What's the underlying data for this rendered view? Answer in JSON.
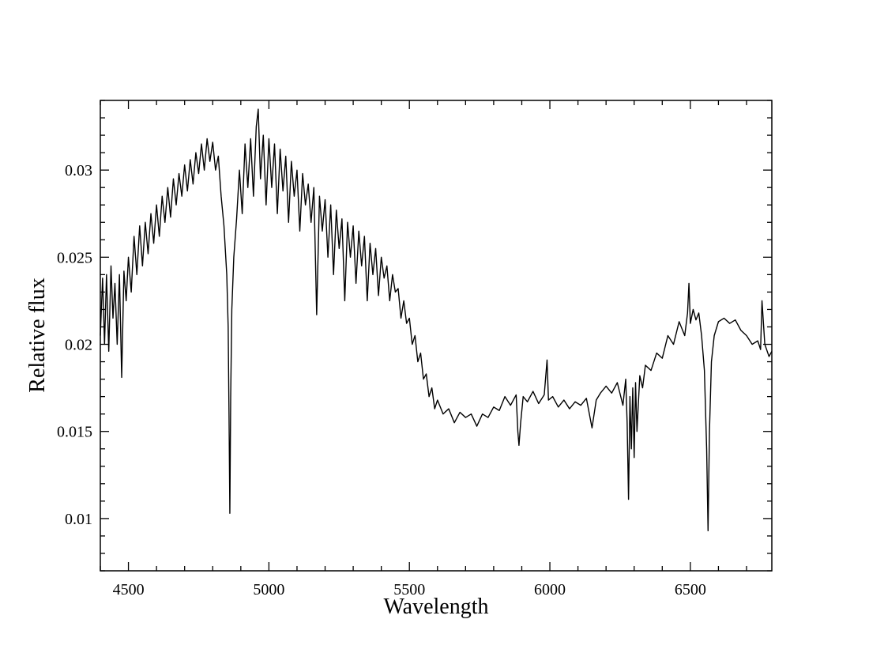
{
  "chart_data": {
    "type": "line",
    "xlabel": "Wavelength",
    "ylabel": "Relative flux",
    "xlim": [
      4400,
      6790
    ],
    "ylim": [
      0.007,
      0.034
    ],
    "xticks": [
      4500,
      5000,
      5500,
      6000,
      6500
    ],
    "yticks": [
      0.01,
      0.015,
      0.02,
      0.025,
      0.03
    ],
    "xminorticks": [
      4400,
      4600,
      4700,
      4800,
      4900,
      5100,
      5200,
      5300,
      5400,
      5600,
      5700,
      5800,
      5900,
      6100,
      6200,
      6300,
      6400,
      6600,
      6700
    ],
    "yminorticks": [
      0.007,
      0.008,
      0.009,
      0.011,
      0.012,
      0.013,
      0.014,
      0.016,
      0.017,
      0.018,
      0.019,
      0.021,
      0.022,
      0.023,
      0.024,
      0.026,
      0.027,
      0.028,
      0.029,
      0.031,
      0.032,
      0.033,
      0.034
    ],
    "color": "#000000",
    "x": [
      4400,
      4408,
      4415,
      4422,
      4430,
      4438,
      4445,
      4452,
      4460,
      4468,
      4476,
      4484,
      4492,
      4500,
      4510,
      4520,
      4530,
      4540,
      4550,
      4560,
      4570,
      4580,
      4590,
      4600,
      4610,
      4620,
      4630,
      4640,
      4650,
      4660,
      4670,
      4680,
      4690,
      4700,
      4710,
      4720,
      4730,
      4740,
      4750,
      4760,
      4770,
      4780,
      4790,
      4800,
      4810,
      4820,
      4830,
      4840,
      4850,
      4855,
      4858,
      4861,
      4864,
      4868,
      4875,
      4885,
      4895,
      4905,
      4915,
      4925,
      4935,
      4945,
      4955,
      4962,
      4970,
      4980,
      4990,
      5000,
      5010,
      5020,
      5030,
      5040,
      5050,
      5060,
      5070,
      5080,
      5090,
      5100,
      5110,
      5120,
      5130,
      5140,
      5150,
      5160,
      5170,
      5180,
      5190,
      5200,
      5210,
      5220,
      5230,
      5240,
      5250,
      5260,
      5270,
      5280,
      5290,
      5300,
      5310,
      5320,
      5330,
      5340,
      5350,
      5360,
      5370,
      5380,
      5390,
      5400,
      5410,
      5420,
      5430,
      5440,
      5450,
      5460,
      5470,
      5480,
      5490,
      5500,
      5510,
      5520,
      5530,
      5540,
      5550,
      5560,
      5570,
      5580,
      5590,
      5600,
      5620,
      5640,
      5660,
      5680,
      5700,
      5720,
      5740,
      5760,
      5780,
      5800,
      5820,
      5840,
      5860,
      5880,
      5886,
      5890,
      5896,
      5905,
      5920,
      5940,
      5960,
      5980,
      5990,
      5995,
      6010,
      6030,
      6050,
      6070,
      6090,
      6110,
      6130,
      6150,
      6165,
      6180,
      6200,
      6220,
      6240,
      6260,
      6270,
      6275,
      6280,
      6285,
      6290,
      6295,
      6300,
      6305,
      6310,
      6320,
      6330,
      6340,
      6360,
      6380,
      6400,
      6420,
      6440,
      6460,
      6480,
      6490,
      6495,
      6500,
      6510,
      6520,
      6530,
      6540,
      6550,
      6558,
      6563,
      6568,
      6575,
      6585,
      6600,
      6620,
      6640,
      6660,
      6680,
      6700,
      6720,
      6740,
      6750,
      6755,
      6765,
      6780,
      6790
    ],
    "values": [
      0.0205,
      0.0238,
      0.02,
      0.024,
      0.0196,
      0.0245,
      0.0215,
      0.0235,
      0.02,
      0.024,
      0.0181,
      0.0242,
      0.0225,
      0.025,
      0.023,
      0.0262,
      0.024,
      0.0268,
      0.0245,
      0.027,
      0.0252,
      0.0275,
      0.0258,
      0.028,
      0.0262,
      0.0285,
      0.027,
      0.029,
      0.0273,
      0.0295,
      0.028,
      0.0298,
      0.0285,
      0.0303,
      0.0288,
      0.0306,
      0.0292,
      0.031,
      0.0298,
      0.0315,
      0.03,
      0.0318,
      0.0305,
      0.0316,
      0.03,
      0.0308,
      0.0285,
      0.0268,
      0.024,
      0.021,
      0.016,
      0.0103,
      0.017,
      0.022,
      0.025,
      0.0272,
      0.03,
      0.0275,
      0.0315,
      0.029,
      0.0318,
      0.0285,
      0.0325,
      0.0335,
      0.0295,
      0.032,
      0.028,
      0.0318,
      0.029,
      0.0315,
      0.0275,
      0.0312,
      0.0288,
      0.0308,
      0.027,
      0.0305,
      0.0285,
      0.03,
      0.0265,
      0.0298,
      0.028,
      0.0292,
      0.027,
      0.029,
      0.0217,
      0.0285,
      0.0265,
      0.0283,
      0.025,
      0.028,
      0.024,
      0.0277,
      0.0255,
      0.0272,
      0.0225,
      0.027,
      0.025,
      0.0268,
      0.0235,
      0.0265,
      0.0245,
      0.0262,
      0.0225,
      0.0258,
      0.024,
      0.0255,
      0.0228,
      0.025,
      0.0238,
      0.0245,
      0.0225,
      0.024,
      0.023,
      0.0232,
      0.0215,
      0.0225,
      0.0212,
      0.0215,
      0.02,
      0.0205,
      0.019,
      0.0195,
      0.018,
      0.0183,
      0.017,
      0.0175,
      0.0163,
      0.0168,
      0.016,
      0.0163,
      0.0155,
      0.0161,
      0.0158,
      0.016,
      0.0153,
      0.016,
      0.0158,
      0.0164,
      0.0162,
      0.017,
      0.0165,
      0.0171,
      0.015,
      0.0142,
      0.0155,
      0.017,
      0.0167,
      0.0173,
      0.0166,
      0.0171,
      0.0191,
      0.0168,
      0.017,
      0.0164,
      0.0168,
      0.0163,
      0.0167,
      0.0165,
      0.0169,
      0.0152,
      0.0168,
      0.0172,
      0.0176,
      0.0172,
      0.0178,
      0.0165,
      0.018,
      0.0155,
      0.0111,
      0.017,
      0.014,
      0.0175,
      0.0135,
      0.0178,
      0.015,
      0.0182,
      0.0175,
      0.0188,
      0.0185,
      0.0195,
      0.0192,
      0.0205,
      0.02,
      0.0213,
      0.0205,
      0.0218,
      0.0235,
      0.0212,
      0.022,
      0.0214,
      0.0218,
      0.0205,
      0.0185,
      0.014,
      0.0093,
      0.015,
      0.019,
      0.0205,
      0.0213,
      0.0215,
      0.0212,
      0.0214,
      0.0208,
      0.0205,
      0.02,
      0.0202,
      0.0197,
      0.0225,
      0.02,
      0.0193,
      0.0196
    ]
  }
}
